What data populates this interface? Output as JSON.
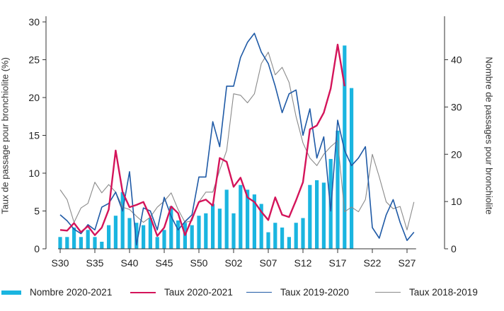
{
  "chart_data": {
    "type": "bar",
    "xlabel": "",
    "ylabel_left": "Taux de passage pour bronchiolite (%)",
    "ylabel_right": "Nombre de passages pour bronchiolite",
    "ylim_left": [
      0,
      30
    ],
    "ylim_right": [
      0,
      48
    ],
    "y_ticks_left": [
      "0",
      "5",
      "10",
      "15",
      "20",
      "25",
      "30"
    ],
    "y_ticks_right": [
      "0",
      "10",
      "20",
      "30",
      "40"
    ],
    "x_tick_labels": [
      "S30",
      "S35",
      "S40",
      "S45",
      "S50",
      "S02",
      "S07",
      "S12",
      "S17",
      "S22",
      "S27"
    ],
    "weeks": [
      "S30",
      "S31",
      "S32",
      "S33",
      "S34",
      "S35",
      "S36",
      "S37",
      "S38",
      "S39",
      "S40",
      "S41",
      "S42",
      "S43",
      "S44",
      "S45",
      "S46",
      "S47",
      "S48",
      "S49",
      "S50",
      "S51",
      "S52",
      "S53",
      "S01",
      "S02",
      "S03",
      "S04",
      "S05",
      "S06",
      "S07",
      "S08",
      "S09",
      "S10",
      "S11",
      "S12",
      "S13",
      "S14",
      "S15",
      "S16",
      "S17",
      "S18",
      "S19",
      "S20",
      "S21",
      "S22",
      "S23",
      "S24",
      "S25",
      "S26",
      "S27",
      "S28"
    ],
    "series": [
      {
        "name": "Nombre 2020-2021",
        "type": "bar",
        "axis": "right",
        "color": "#1ab5e0",
        "values": [
          2.5,
          2.5,
          4.5,
          2.5,
          4,
          2.5,
          1.5,
          5,
          7,
          12,
          6.5,
          5.5,
          5,
          6.5,
          2.5,
          4,
          9,
          6,
          5.5,
          5,
          7,
          7.5,
          9.5,
          8.5,
          12.5,
          7.5,
          13.5,
          12.5,
          11.5,
          9.5,
          3.5,
          5.5,
          4.5,
          2.5,
          5.5,
          6.5,
          13.5,
          14.5,
          14,
          19,
          25,
          43,
          34,
          null,
          null,
          null,
          null,
          null,
          null,
          null,
          null,
          null
        ]
      },
      {
        "name": "Taux 2020-2021",
        "type": "line",
        "axis": "left",
        "color": "#d4145a",
        "values": [
          2.5,
          2.4,
          3.4,
          2.2,
          3,
          1.8,
          2.8,
          5.2,
          13,
          7.5,
          5.5,
          5.8,
          6.2,
          4.2,
          1.7,
          2.8,
          5.6,
          4.7,
          1.8,
          4,
          6.2,
          6.5,
          5.7,
          12,
          11.5,
          8.2,
          9.4,
          6.8,
          6.2,
          4.9,
          3.8,
          6.8,
          4.5,
          4.2,
          6.4,
          8.8,
          15.8,
          16.3,
          18,
          21.2,
          27,
          21.5,
          null,
          null,
          null,
          null,
          null,
          null,
          null,
          null,
          null,
          null
        ]
      },
      {
        "name": "Taux 2019-2020",
        "type": "line",
        "axis": "left",
        "color": "#1f5aa6",
        "values": [
          4.5,
          3.7,
          2.6,
          2,
          3.2,
          2.5,
          5.5,
          6,
          7.5,
          5,
          10.2,
          0.5,
          5.4,
          5,
          2.5,
          6.8,
          4.3,
          2.5,
          3.6,
          4.5,
          9.5,
          9.5,
          16.8,
          13.5,
          21.5,
          21.5,
          25.3,
          27.3,
          28.5,
          26,
          24.5,
          21.5,
          18,
          20.5,
          21,
          15,
          18.5,
          12,
          14.8,
          5,
          17,
          13,
          11,
          12,
          13.5,
          2.8,
          1.4,
          4.5,
          6.5,
          3.5,
          1.1,
          2.2
        ]
      },
      {
        "name": "Taux 2018-2019",
        "type": "line",
        "axis": "left",
        "color": "#8a8a8a",
        "values": [
          7.8,
          6.5,
          3.5,
          5.4,
          6,
          8.8,
          7.4,
          8.5,
          7.5,
          5.5,
          5.2,
          4.3,
          3.5,
          4.2,
          5.5,
          6.3,
          7.4,
          5.2,
          3.5,
          3.7,
          6.2,
          7.5,
          7.5,
          10.4,
          13,
          20.5,
          20.3,
          19.3,
          20.5,
          24.5,
          26,
          23,
          24,
          22,
          17.5,
          14,
          12,
          11,
          12.5,
          13.5,
          14.3,
          4.9,
          5.5,
          4.9,
          6.5,
          12.5,
          9.5,
          6.2,
          5.3,
          5.6,
          2.5,
          6.2
        ]
      }
    ],
    "legend_position": "bottom",
    "grid": false
  }
}
